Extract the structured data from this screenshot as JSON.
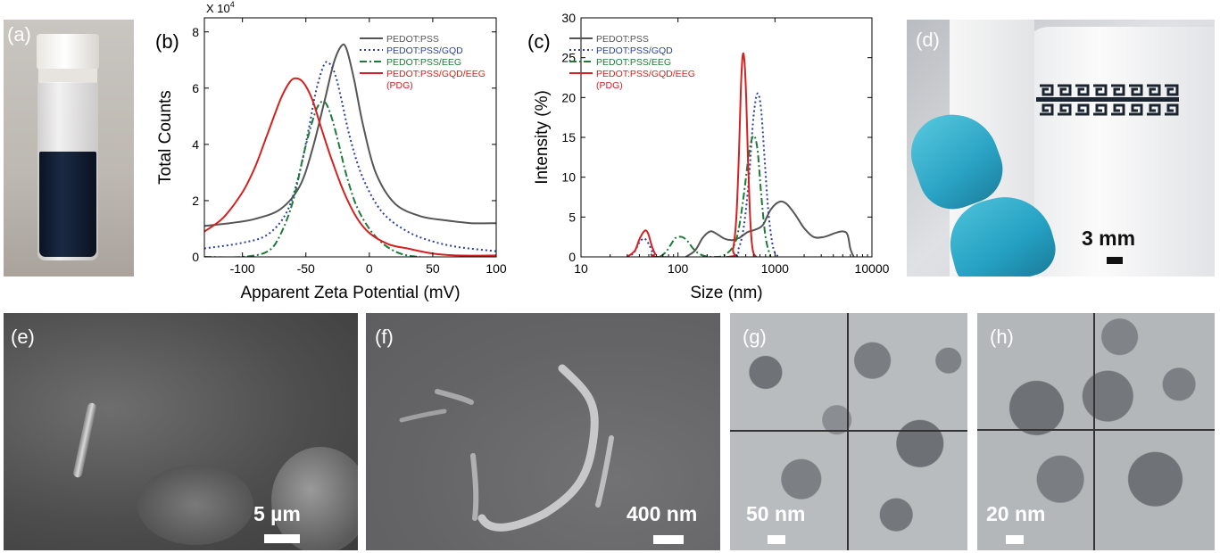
{
  "panel_labels": {
    "a": "(a)",
    "b": "(b)",
    "c": "(c)",
    "d": "(d)",
    "e": "(e)",
    "f": "(f)",
    "g": "(g)",
    "h": "(h)"
  },
  "chart_data": [
    {
      "type": "line",
      "panel": "(b)",
      "multiplier": "X 10",
      "multiplier_exp": "4",
      "xlabel": "Apparent Zeta Potential (mV)",
      "ylabel": "Total Counts",
      "xlim": [
        -130,
        100
      ],
      "ylim": [
        0,
        8.5
      ],
      "xticks": [
        -100,
        -50,
        0,
        50,
        100
      ],
      "xtick_labels": [
        "-100",
        "-50",
        "0",
        "50",
        "100"
      ],
      "yticks": [
        0,
        2,
        4,
        6,
        8
      ],
      "ytick_labels": [
        "0",
        "2",
        "4",
        "6",
        "8"
      ],
      "legend": [
        "PEDOT:PSS",
        "PEDOT:PSS/GQD",
        "PEDOT:PSS/EEG",
        "PEDOT:PSS/GQD/EEG",
        "(PDG)"
      ],
      "series": [
        {
          "name": "PEDOT:PSS",
          "color": "#555555",
          "dash": "solid",
          "x": [
            -130,
            -110,
            -90,
            -70,
            -55,
            -45,
            -35,
            -28,
            -22,
            -18,
            -12,
            -5,
            5,
            20,
            40,
            60,
            80,
            100
          ],
          "y": [
            1.1,
            1.2,
            1.35,
            1.7,
            2.5,
            3.8,
            5.6,
            6.9,
            7.5,
            7.4,
            6.3,
            4.7,
            3.0,
            1.9,
            1.45,
            1.3,
            1.2,
            1.2
          ]
        },
        {
          "name": "PEDOT:PSS/GQD",
          "color": "#2b3f9f",
          "dash": "dot",
          "x": [
            -130,
            -100,
            -80,
            -65,
            -55,
            -48,
            -42,
            -36,
            -32,
            -27,
            -22,
            -15,
            -5,
            10,
            30,
            50,
            70,
            100
          ],
          "y": [
            0.3,
            0.5,
            0.8,
            1.6,
            3.0,
            4.5,
            5.9,
            6.8,
            6.9,
            6.5,
            5.6,
            4.2,
            2.8,
            1.6,
            0.9,
            0.55,
            0.35,
            0.2
          ]
        },
        {
          "name": "PEDOT:PSS/EEG",
          "color": "#1f7a3a",
          "dash": "dashdot",
          "x": [
            -130,
            -100,
            -80,
            -70,
            -60,
            -52,
            -45,
            -40,
            -35,
            -30,
            -24,
            -18,
            -10,
            0,
            10,
            20,
            30,
            40
          ],
          "y": [
            0.0,
            0.0,
            0.2,
            0.8,
            2.0,
            3.6,
            4.8,
            5.4,
            5.5,
            5.0,
            4.0,
            2.9,
            1.8,
            1.0,
            0.5,
            0.2,
            0.05,
            0.0
          ]
        },
        {
          "name": "PEDOT:PSS/GQD/EEG (PDG)",
          "color": "#d62020",
          "dash": "solid",
          "x": [
            -130,
            -115,
            -100,
            -90,
            -80,
            -70,
            -63,
            -58,
            -52,
            -45,
            -38,
            -30,
            -20,
            -10,
            0,
            15,
            30,
            50,
            70,
            100
          ],
          "y": [
            0.9,
            1.4,
            2.3,
            3.2,
            4.4,
            5.6,
            6.2,
            6.35,
            6.2,
            5.6,
            4.6,
            3.5,
            2.3,
            1.4,
            0.85,
            0.45,
            0.3,
            0.12,
            0.05,
            0.05
          ]
        }
      ]
    },
    {
      "type": "line",
      "panel": "(c)",
      "xscale": "log",
      "xlabel": "Size (nm)",
      "ylabel": "Intensity (%)",
      "xlim": [
        10,
        10000
      ],
      "ylim": [
        0,
        30
      ],
      "xticks": [
        10,
        100,
        1000,
        10000
      ],
      "xtick_labels": [
        "10",
        "100",
        "1000",
        "10000"
      ],
      "yticks": [
        0,
        5,
        10,
        15,
        20,
        25,
        30
      ],
      "ytick_labels": [
        "0",
        "5",
        "10",
        "15",
        "20",
        "25",
        "30"
      ],
      "legend": [
        "PEDOT:PSS",
        "PEDOT:PSS/GQD",
        "PEDOT:PSS/EEG",
        "PEDOT:PSS/GQD/EEG",
        "(PDG)"
      ],
      "series": [
        {
          "name": "PEDOT:PSS",
          "color": "#555555",
          "dash": "solid",
          "x": [
            120,
            150,
            180,
            215,
            250,
            300,
            360,
            430,
            520,
            620,
            750,
            900,
            1100,
            1300,
            1600,
            2000,
            2500,
            3200,
            4200,
            5000,
            5600,
            6000,
            6500
          ],
          "y": [
            0,
            0.8,
            2.4,
            3.2,
            2.9,
            2.3,
            2.1,
            2.4,
            3.1,
            3.4,
            4.0,
            5.9,
            6.9,
            6.7,
            5.4,
            3.6,
            2.5,
            2.5,
            3.0,
            3.2,
            2.8,
            1.0,
            0
          ]
        },
        {
          "name": "PEDOT:PSS/GQD",
          "color": "#2b3f9f",
          "dash": "dot",
          "x": [
            30,
            35,
            40,
            45,
            50,
            55,
            60,
            350,
            420,
            480,
            540,
            600,
            660,
            720,
            780,
            850,
            930,
            1000,
            1100
          ],
          "y": [
            0,
            0.5,
            1.8,
            2.3,
            1.6,
            0.5,
            0,
            0,
            1.0,
            4.0,
            10.0,
            17.5,
            20.5,
            18.5,
            12.5,
            6.0,
            2.0,
            0.5,
            0
          ]
        },
        {
          "name": "PEDOT:PSS/EEG",
          "color": "#1f7a3a",
          "dash": "dashdot",
          "x": [
            65,
            75,
            85,
            95,
            110,
            125,
            140,
            160,
            190,
            240,
            300,
            380,
            430,
            480,
            540,
            600,
            660,
            720,
            800,
            900
          ],
          "y": [
            0,
            0.6,
            1.6,
            2.4,
            2.5,
            2.0,
            1.2,
            0.5,
            0.1,
            0,
            0.2,
            1.5,
            4.0,
            8.0,
            13.0,
            15.2,
            13.5,
            8.0,
            2.5,
            0
          ]
        },
        {
          "name": "PEDOT:PSS/GQD/EEG (PDG)",
          "color": "#d62020",
          "dash": "solid",
          "x": [
            30,
            36,
            40,
            44,
            47,
            50,
            54,
            58,
            62,
            330,
            370,
            400,
            425,
            445,
            465,
            485,
            505,
            525,
            550,
            575,
            600,
            640
          ],
          "y": [
            0,
            0.8,
            2.2,
            3.1,
            3.3,
            2.7,
            1.3,
            0.4,
            0,
            0,
            1.0,
            5.0,
            13.0,
            21.0,
            25.3,
            24.5,
            20.0,
            13.0,
            6.0,
            2.0,
            0.5,
            0
          ]
        }
      ]
    }
  ],
  "photo_d": {
    "scale_label": "3 mm"
  },
  "images": {
    "e": {
      "scale_label": "5 µm"
    },
    "f": {
      "scale_label": "400 nm"
    },
    "g": {
      "scale_label": "50 nm"
    },
    "h": {
      "scale_label": "20 nm"
    }
  }
}
